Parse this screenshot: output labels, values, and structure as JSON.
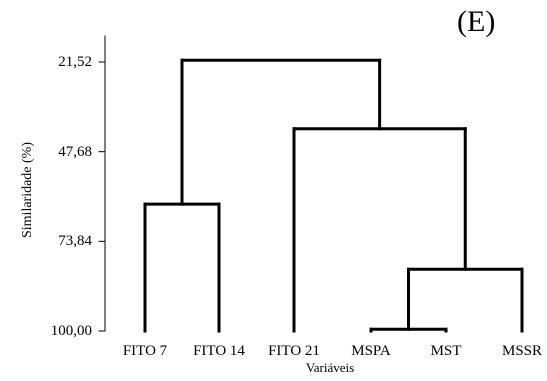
{
  "chart_data": {
    "type": "dendrogram",
    "panel_label": "(E)",
    "xlabel": "Variáveis",
    "ylabel": "Similaridade (%)",
    "ylim": [
      100.0,
      21.52
    ],
    "yticks": [
      21.52,
      47.68,
      73.84,
      100.0
    ],
    "ytick_labels": [
      "21,52",
      "47,68",
      "73,84",
      "100,00"
    ],
    "leaves": [
      "FITO 7",
      "FITO 14",
      "FITO 21",
      "MSPA",
      "MST",
      "MSSR"
    ],
    "merges": [
      {
        "left": [
          3
        ],
        "right": [
          4
        ],
        "similarity": 99.5
      },
      {
        "left": [
          3,
          4
        ],
        "right": [
          5
        ],
        "similarity": 82.0
      },
      {
        "left": [
          0
        ],
        "right": [
          1
        ],
        "similarity": 63.0
      },
      {
        "left": [
          2
        ],
        "right": [
          3,
          4,
          5
        ],
        "similarity": 41.0
      },
      {
        "left": [
          0,
          1
        ],
        "right": [
          2,
          3,
          4,
          5
        ],
        "similarity": 21.0
      }
    ],
    "grid": false,
    "legend": "none"
  }
}
